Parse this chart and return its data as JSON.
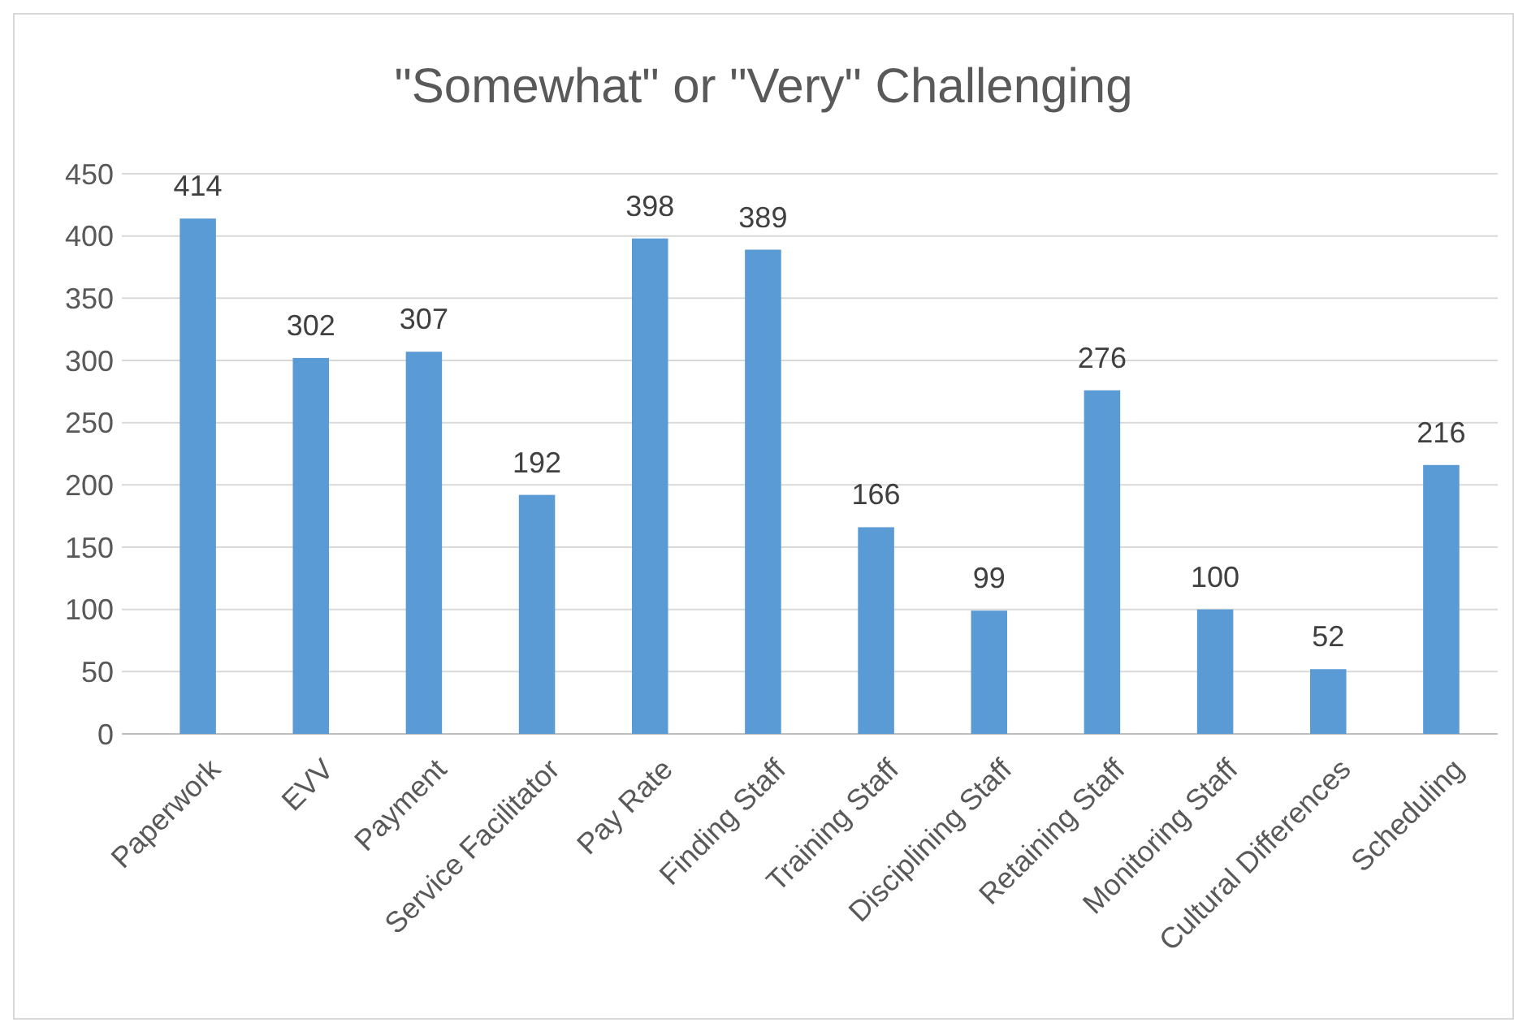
{
  "chart_data": {
    "type": "bar",
    "title": "\"Somewhat\" or \"Very\" Challenging",
    "categories": [
      "Paperwork",
      "EVV",
      "Payment",
      "Service Facilitator",
      "Pay Rate",
      "Finding Staff",
      "Training Staff",
      "Disciplining Staff",
      "Retaining Staff",
      "Monitoring Staff",
      "Cultural Differences",
      "Scheduling"
    ],
    "values": [
      414,
      302,
      307,
      192,
      398,
      389,
      166,
      99,
      276,
      100,
      52,
      216
    ],
    "color": "#5b9bd5",
    "ylim": [
      0,
      450
    ],
    "yticks": [
      0,
      50,
      100,
      150,
      200,
      250,
      300,
      350,
      400,
      450
    ],
    "grid": "y",
    "data_labels": true
  }
}
